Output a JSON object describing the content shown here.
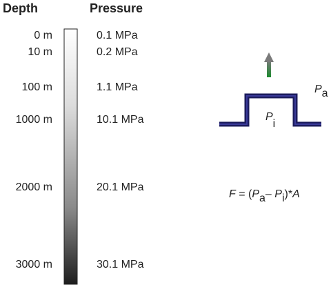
{
  "header": {
    "depth": "Depth",
    "pressure": "Pressure"
  },
  "rows": [
    {
      "depth": "0 m",
      "pressure": "0.1 MPa"
    },
    {
      "depth": "10 m",
      "pressure": "0.2 MPa"
    },
    {
      "depth": "100 m",
      "pressure": "1.1 MPa"
    },
    {
      "depth": "1000 m",
      "pressure": "10.1 MPa"
    },
    {
      "depth": "2000 m",
      "pressure": "20.1 MPa"
    },
    {
      "depth": "3000 m",
      "pressure": "30.1 MPa"
    }
  ],
  "diagram": {
    "outside_pressure": {
      "symbol": "P",
      "subscript": "a"
    },
    "inside_pressure": {
      "symbol": "P",
      "subscript": "i"
    },
    "formula": [
      "F",
      " = (",
      "P",
      "a",
      "– ",
      "P",
      "i",
      ")*",
      "A"
    ]
  }
}
